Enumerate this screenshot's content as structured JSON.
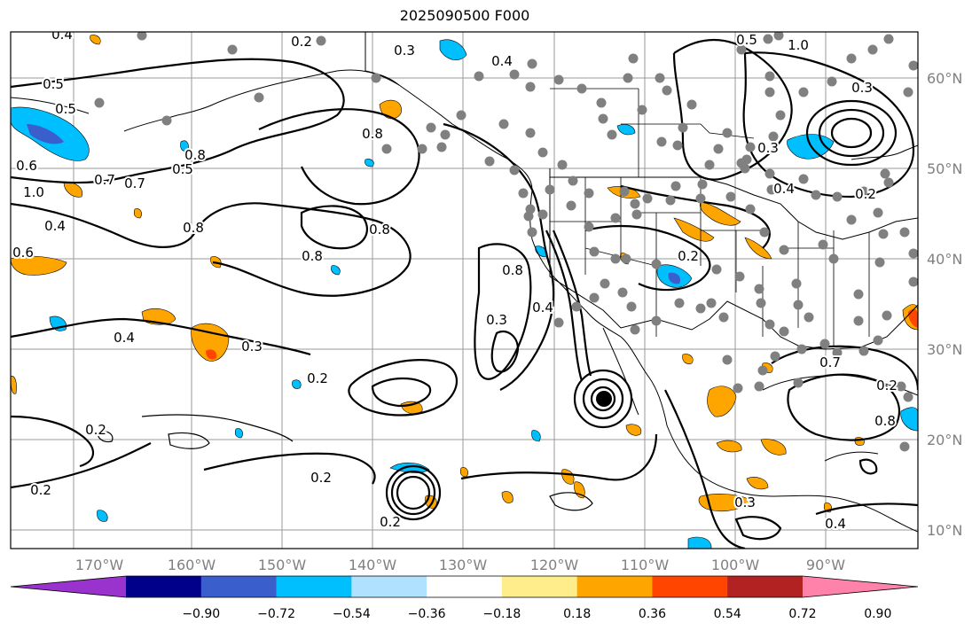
{
  "title": "2025090500 F000",
  "lon_labels": [
    "170°W",
    "160°W",
    "150°W",
    "140°W",
    "130°W",
    "120°W",
    "110°W",
    "100°W",
    "90°W"
  ],
  "lat_labels": [
    "60°N",
    "50°N",
    "40°N",
    "30°N",
    "20°N",
    "10°N"
  ],
  "colorbar": {
    "colors": [
      "#9a32cd",
      "#00008b",
      "#3a5fcd",
      "#00bfff",
      "#b0e2ff",
      "#ffffff",
      "#ffec8b",
      "#ffa500",
      "#ff4500",
      "#b22222",
      "#ff82ab"
    ],
    "tick_labels": [
      "−0.90",
      "−0.72",
      "−0.54",
      "−0.36",
      "−0.18",
      "0.18",
      "0.36",
      "0.54",
      "0.72",
      "0.90"
    ]
  },
  "contour_labels": [
    "0.4",
    "0.5",
    "0.5",
    "0.6",
    "0.7",
    "1.0",
    "0.4",
    "0.6",
    "0.5",
    "0.2",
    "0.3",
    "0.4",
    "0.8",
    "0.8",
    "0.7",
    "0.8",
    "0.8",
    "0.8",
    "0.3",
    "0.4",
    "0.4",
    "0.3",
    "0.2",
    "0.2",
    "0.2",
    "0.2",
    "0.8",
    "0.3",
    "0.4",
    "0.2",
    "0.7",
    "0.8",
    "0.5",
    "1.0",
    "0.3",
    "0.3",
    "0.4",
    "0.2",
    "0.2",
    "0.2"
  ],
  "station_marker_color": "#808080"
}
